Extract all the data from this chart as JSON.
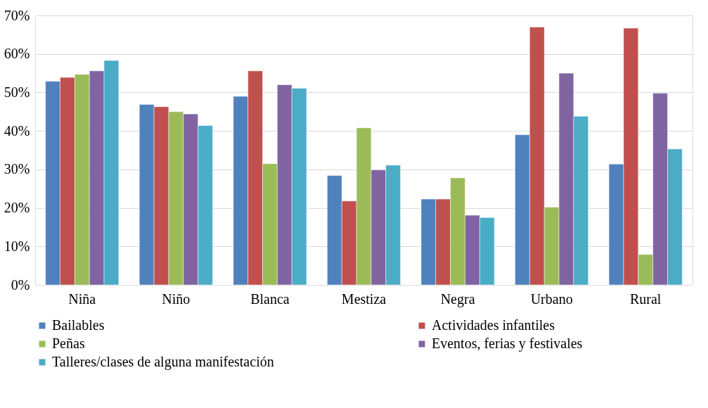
{
  "chart_data": {
    "type": "bar",
    "categories": [
      "Niña",
      "Niño",
      "Blanca",
      "Mestiza",
      "Negra",
      "Urbano",
      "Rural"
    ],
    "series": [
      {
        "name": "Bailables",
        "color": "#4f81bd",
        "values": [
          52.9,
          46.9,
          49.0,
          28.4,
          22.3,
          39.0,
          31.4
        ]
      },
      {
        "name": "Actividades infantiles",
        "color": "#c0504d",
        "values": [
          53.9,
          46.3,
          55.6,
          21.8,
          22.3,
          67.0,
          66.7
        ]
      },
      {
        "name": "Peñas",
        "color": "#9bbb59",
        "values": [
          54.7,
          45.0,
          31.5,
          40.8,
          27.8,
          20.2,
          7.9
        ]
      },
      {
        "name": "Eventos, ferias y festivales",
        "color": "#8064a2",
        "values": [
          55.6,
          44.4,
          52.0,
          29.9,
          18.1,
          55.0,
          49.8
        ]
      },
      {
        "name": "Talleres/clases de alguna manifestación",
        "color": "#4bacc6",
        "values": [
          58.3,
          41.4,
          51.1,
          31.1,
          17.5,
          43.8,
          35.3
        ]
      }
    ],
    "ylim": [
      0,
      70
    ],
    "yticks": [
      {
        "value": 0,
        "label": "0%"
      },
      {
        "value": 10,
        "label": "10%"
      },
      {
        "value": 20,
        "label": "20%"
      },
      {
        "value": 30,
        "label": "30%"
      },
      {
        "value": 40,
        "label": "40%"
      },
      {
        "value": 50,
        "label": "50%"
      },
      {
        "value": 60,
        "label": "60%"
      },
      {
        "value": 70,
        "label": "70%"
      }
    ],
    "grid": "y",
    "legend": "bottom"
  }
}
